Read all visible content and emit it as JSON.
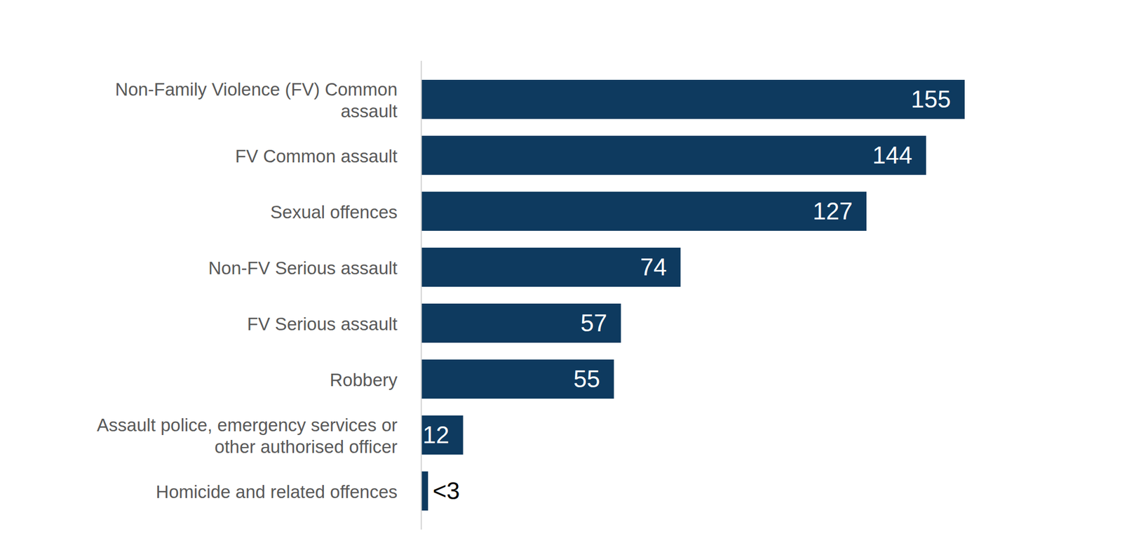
{
  "chart_data": {
    "type": "bar",
    "orientation": "horizontal",
    "categories": [
      "Non-Family Violence (FV) Common assault",
      "FV Common assault",
      "Sexual offences",
      "Non-FV Serious assault",
      "FV Serious assault",
      "Robbery",
      "Assault police, emergency services or other authorised officer",
      "Homicide and related offences"
    ],
    "values": [
      155,
      144,
      127,
      74,
      57,
      55,
      12,
      2
    ],
    "value_labels": [
      "155",
      "144",
      "127",
      "74",
      "57",
      "55",
      "12",
      "<3"
    ],
    "color": "#0e3a5f",
    "data_labels": true,
    "tick_labels": false,
    "grid": false
  }
}
